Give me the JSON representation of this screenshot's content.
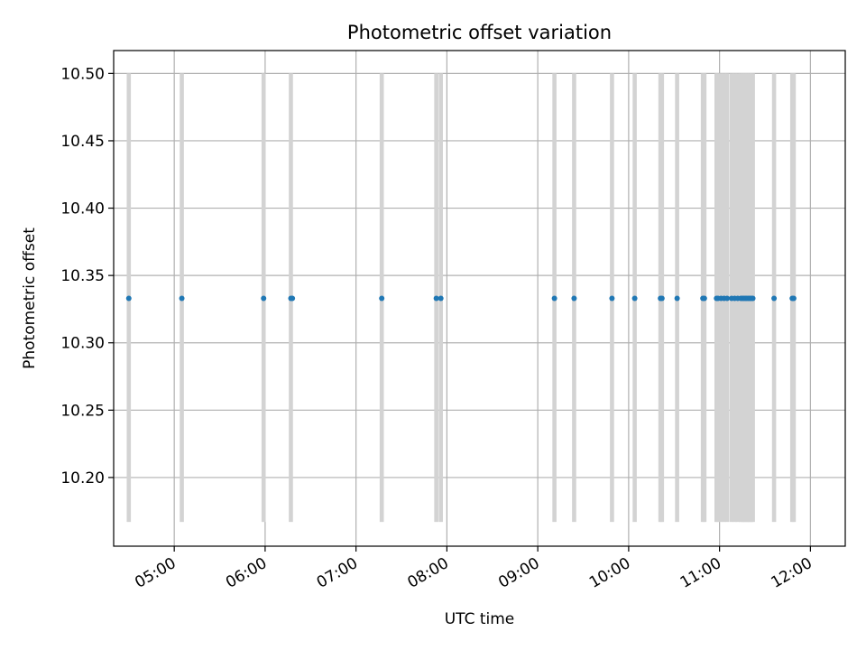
{
  "chart_data": {
    "type": "scatter",
    "title": "Photometric offset variation",
    "xlabel": "UTC time",
    "ylabel": "Photometric offset",
    "x_axis_type": "time",
    "xlim": [
      "04:20",
      "12:23"
    ],
    "ylim": [
      10.149,
      10.517
    ],
    "grid": true,
    "x_ticks": [
      "05:00",
      "06:00",
      "07:00",
      "08:00",
      "09:00",
      "10:00",
      "11:00",
      "12:00"
    ],
    "y_ticks": [
      10.2,
      10.25,
      10.3,
      10.35,
      10.4,
      10.45,
      10.5
    ],
    "marker_color": "#1f77b4",
    "band_color": "#d3d3d3",
    "vertical_bands": {
      "y_range": [
        10.167,
        10.5
      ],
      "times": [
        "04:30",
        "05:05",
        "05:59",
        "06:17",
        "07:17",
        "07:53",
        "07:56",
        "09:11",
        "09:24",
        "09:49",
        "10:04",
        "10:21",
        "10:22",
        "10:32",
        "10:49",
        "10:50",
        "10:58",
        "10:59",
        "11:01",
        "11:03",
        "11:05",
        "11:08",
        "11:10",
        "11:12",
        "11:14",
        "11:15",
        "11:16",
        "11:17",
        "11:18",
        "11:19",
        "11:20",
        "11:21",
        "11:22",
        "11:36",
        "11:48",
        "11:49"
      ]
    },
    "series": [
      {
        "x": [
          "04:30",
          "05:05",
          "05:59",
          "06:17",
          "06:18",
          "07:17",
          "07:53",
          "07:56",
          "09:11",
          "09:24",
          "09:49",
          "10:04",
          "10:21",
          "10:22",
          "10:32",
          "10:49",
          "10:50",
          "10:58",
          "10:59",
          "11:01",
          "11:03",
          "11:05",
          "11:08",
          "11:10",
          "11:12",
          "11:14",
          "11:15",
          "11:16",
          "11:17",
          "11:18",
          "11:19",
          "11:20",
          "11:21",
          "11:22",
          "11:36",
          "11:48",
          "11:49"
        ],
        "y": [
          10.333,
          10.333,
          10.333,
          10.333,
          10.333,
          10.333,
          10.333,
          10.333,
          10.333,
          10.333,
          10.333,
          10.333,
          10.333,
          10.333,
          10.333,
          10.333,
          10.333,
          10.333,
          10.333,
          10.333,
          10.333,
          10.333,
          10.333,
          10.333,
          10.333,
          10.333,
          10.333,
          10.333,
          10.333,
          10.333,
          10.333,
          10.333,
          10.333,
          10.333,
          10.333,
          10.333,
          10.333
        ]
      }
    ]
  }
}
